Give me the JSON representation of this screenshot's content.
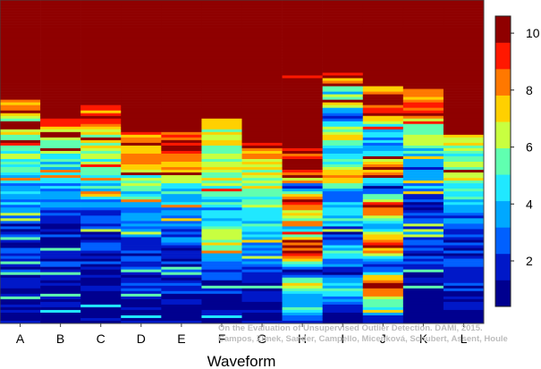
{
  "chart_data": {
    "type": "heatmap",
    "title": "",
    "xlabel": "Waveform",
    "ylabel": "",
    "categories": [
      "A",
      "B",
      "C",
      "D",
      "E",
      "F",
      "G",
      "H",
      "I",
      "J",
      "K",
      "L"
    ],
    "colorbar": {
      "range": [
        0.4,
        10.6
      ],
      "ticks": [
        2,
        4,
        6,
        8,
        10
      ],
      "colors": [
        "#00008f",
        "#0018c8",
        "#0060ff",
        "#00a8ff",
        "#20e8ff",
        "#60ffb0",
        "#c8ff40",
        "#ffd000",
        "#ff7800",
        "#ff1800",
        "#8f0000"
      ]
    },
    "columns": [
      {
        "name": "A",
        "profile": [
          [
            0,
            11
          ],
          [
            0.31,
            11
          ],
          [
            0.32,
            8
          ],
          [
            0.34,
            10
          ],
          [
            0.37,
            7
          ],
          [
            0.42,
            7
          ],
          [
            0.45,
            6
          ],
          [
            0.5,
            6
          ],
          [
            0.55,
            5
          ],
          [
            0.6,
            4
          ],
          [
            0.65,
            3
          ],
          [
            0.72,
            2
          ],
          [
            0.8,
            2
          ],
          [
            1,
            1
          ]
        ]
      },
      {
        "name": "B",
        "profile": [
          [
            0,
            11
          ],
          [
            0.36,
            11
          ],
          [
            0.37,
            10
          ],
          [
            0.4,
            8
          ],
          [
            0.44,
            7
          ],
          [
            0.48,
            6
          ],
          [
            0.53,
            5
          ],
          [
            0.58,
            4
          ],
          [
            0.63,
            3
          ],
          [
            0.7,
            2
          ],
          [
            0.8,
            2
          ],
          [
            1,
            1
          ]
        ]
      },
      {
        "name": "C",
        "profile": [
          [
            0,
            11
          ],
          [
            0.32,
            11
          ],
          [
            0.33,
            9
          ],
          [
            0.36,
            10
          ],
          [
            0.4,
            8
          ],
          [
            0.44,
            7
          ],
          [
            0.5,
            6
          ],
          [
            0.56,
            5
          ],
          [
            0.62,
            4
          ],
          [
            0.68,
            3
          ],
          [
            0.76,
            2
          ],
          [
            1,
            1
          ]
        ]
      },
      {
        "name": "D",
        "profile": [
          [
            0,
            11
          ],
          [
            0.4,
            11
          ],
          [
            0.41,
            9
          ],
          [
            0.43,
            10
          ],
          [
            0.46,
            9
          ],
          [
            0.5,
            8
          ],
          [
            0.55,
            6
          ],
          [
            0.6,
            5
          ],
          [
            0.66,
            4
          ],
          [
            0.72,
            3
          ],
          [
            0.8,
            2
          ],
          [
            1,
            1
          ]
        ]
      },
      {
        "name": "E",
        "profile": [
          [
            0,
            11
          ],
          [
            0.4,
            11
          ],
          [
            0.41,
            9
          ],
          [
            0.44,
            10
          ],
          [
            0.48,
            9
          ],
          [
            0.52,
            8
          ],
          [
            0.56,
            6
          ],
          [
            0.61,
            5
          ],
          [
            0.66,
            4
          ],
          [
            0.72,
            3
          ],
          [
            0.8,
            2
          ],
          [
            1,
            1
          ]
        ]
      },
      {
        "name": "F",
        "profile": [
          [
            0,
            11
          ],
          [
            0.36,
            11
          ],
          [
            0.37,
            9
          ],
          [
            0.4,
            7
          ],
          [
            0.44,
            8
          ],
          [
            0.48,
            6
          ],
          [
            0.55,
            7
          ],
          [
            0.62,
            5
          ],
          [
            0.68,
            4
          ],
          [
            0.74,
            8
          ],
          [
            0.8,
            3
          ],
          [
            0.88,
            2
          ],
          [
            1,
            1
          ]
        ]
      },
      {
        "name": "G",
        "profile": [
          [
            0,
            11
          ],
          [
            0.44,
            11
          ],
          [
            0.45,
            10
          ],
          [
            0.5,
            8
          ],
          [
            0.56,
            7
          ],
          [
            0.62,
            6
          ],
          [
            0.68,
            5
          ],
          [
            0.74,
            4
          ],
          [
            0.8,
            3
          ],
          [
            0.86,
            2
          ],
          [
            1,
            1
          ]
        ]
      },
      {
        "name": "H",
        "profile": [
          [
            0,
            11
          ],
          [
            0.23,
            11
          ],
          [
            0.24,
            10
          ],
          [
            0.25,
            11
          ],
          [
            0.44,
            11
          ],
          [
            0.46,
            10
          ],
          [
            0.52,
            11
          ],
          [
            0.58,
            2
          ],
          [
            0.62,
            11
          ],
          [
            0.7,
            4
          ],
          [
            0.78,
            11
          ],
          [
            0.84,
            2
          ],
          [
            0.88,
            8
          ],
          [
            0.92,
            3
          ],
          [
            0.96,
            6
          ],
          [
            1,
            1
          ]
        ]
      },
      {
        "name": "I",
        "profile": [
          [
            0,
            11
          ],
          [
            0.22,
            11
          ],
          [
            0.23,
            10
          ],
          [
            0.25,
            9
          ],
          [
            0.28,
            5
          ],
          [
            0.32,
            7
          ],
          [
            0.36,
            3
          ],
          [
            0.42,
            8
          ],
          [
            0.48,
            4
          ],
          [
            0.54,
            9
          ],
          [
            0.6,
            3
          ],
          [
            0.66,
            6
          ],
          [
            0.72,
            2
          ],
          [
            0.78,
            5
          ],
          [
            0.84,
            2
          ],
          [
            0.9,
            6
          ],
          [
            0.96,
            1
          ],
          [
            1,
            1
          ]
        ]
      },
      {
        "name": "J",
        "profile": [
          [
            0,
            11
          ],
          [
            0.26,
            11
          ],
          [
            0.27,
            7
          ],
          [
            0.3,
            11
          ],
          [
            0.36,
            9
          ],
          [
            0.4,
            5
          ],
          [
            0.46,
            3
          ],
          [
            0.52,
            11
          ],
          [
            0.58,
            2
          ],
          [
            0.64,
            11
          ],
          [
            0.7,
            4
          ],
          [
            0.76,
            11
          ],
          [
            0.82,
            2
          ],
          [
            0.88,
            11
          ],
          [
            0.94,
            6
          ],
          [
            1,
            1
          ]
        ]
      },
      {
        "name": "K",
        "profile": [
          [
            0,
            11
          ],
          [
            0.26,
            11
          ],
          [
            0.27,
            9
          ],
          [
            0.3,
            8
          ],
          [
            0.34,
            10
          ],
          [
            0.38,
            6
          ],
          [
            0.42,
            7
          ],
          [
            0.46,
            5
          ],
          [
            0.52,
            3
          ],
          [
            0.58,
            4
          ],
          [
            0.64,
            2
          ],
          [
            0.72,
            3
          ],
          [
            0.8,
            2
          ],
          [
            1,
            1
          ]
        ]
      },
      {
        "name": "L",
        "profile": [
          [
            0,
            11
          ],
          [
            0.41,
            11
          ],
          [
            0.42,
            9
          ],
          [
            0.45,
            7
          ],
          [
            0.5,
            6
          ],
          [
            0.55,
            7
          ],
          [
            0.6,
            5
          ],
          [
            0.65,
            4
          ],
          [
            0.7,
            3
          ],
          [
            0.75,
            2
          ],
          [
            0.85,
            2
          ],
          [
            1,
            1
          ]
        ]
      }
    ]
  },
  "watermark": {
    "line1": "On the Evaluation of Unsupervised Outlier Detection. DAMI, 2015.",
    "line2": "Campos, Zimek, Sander, Campello, Micenková, Schubert, Assent, Houle"
  }
}
